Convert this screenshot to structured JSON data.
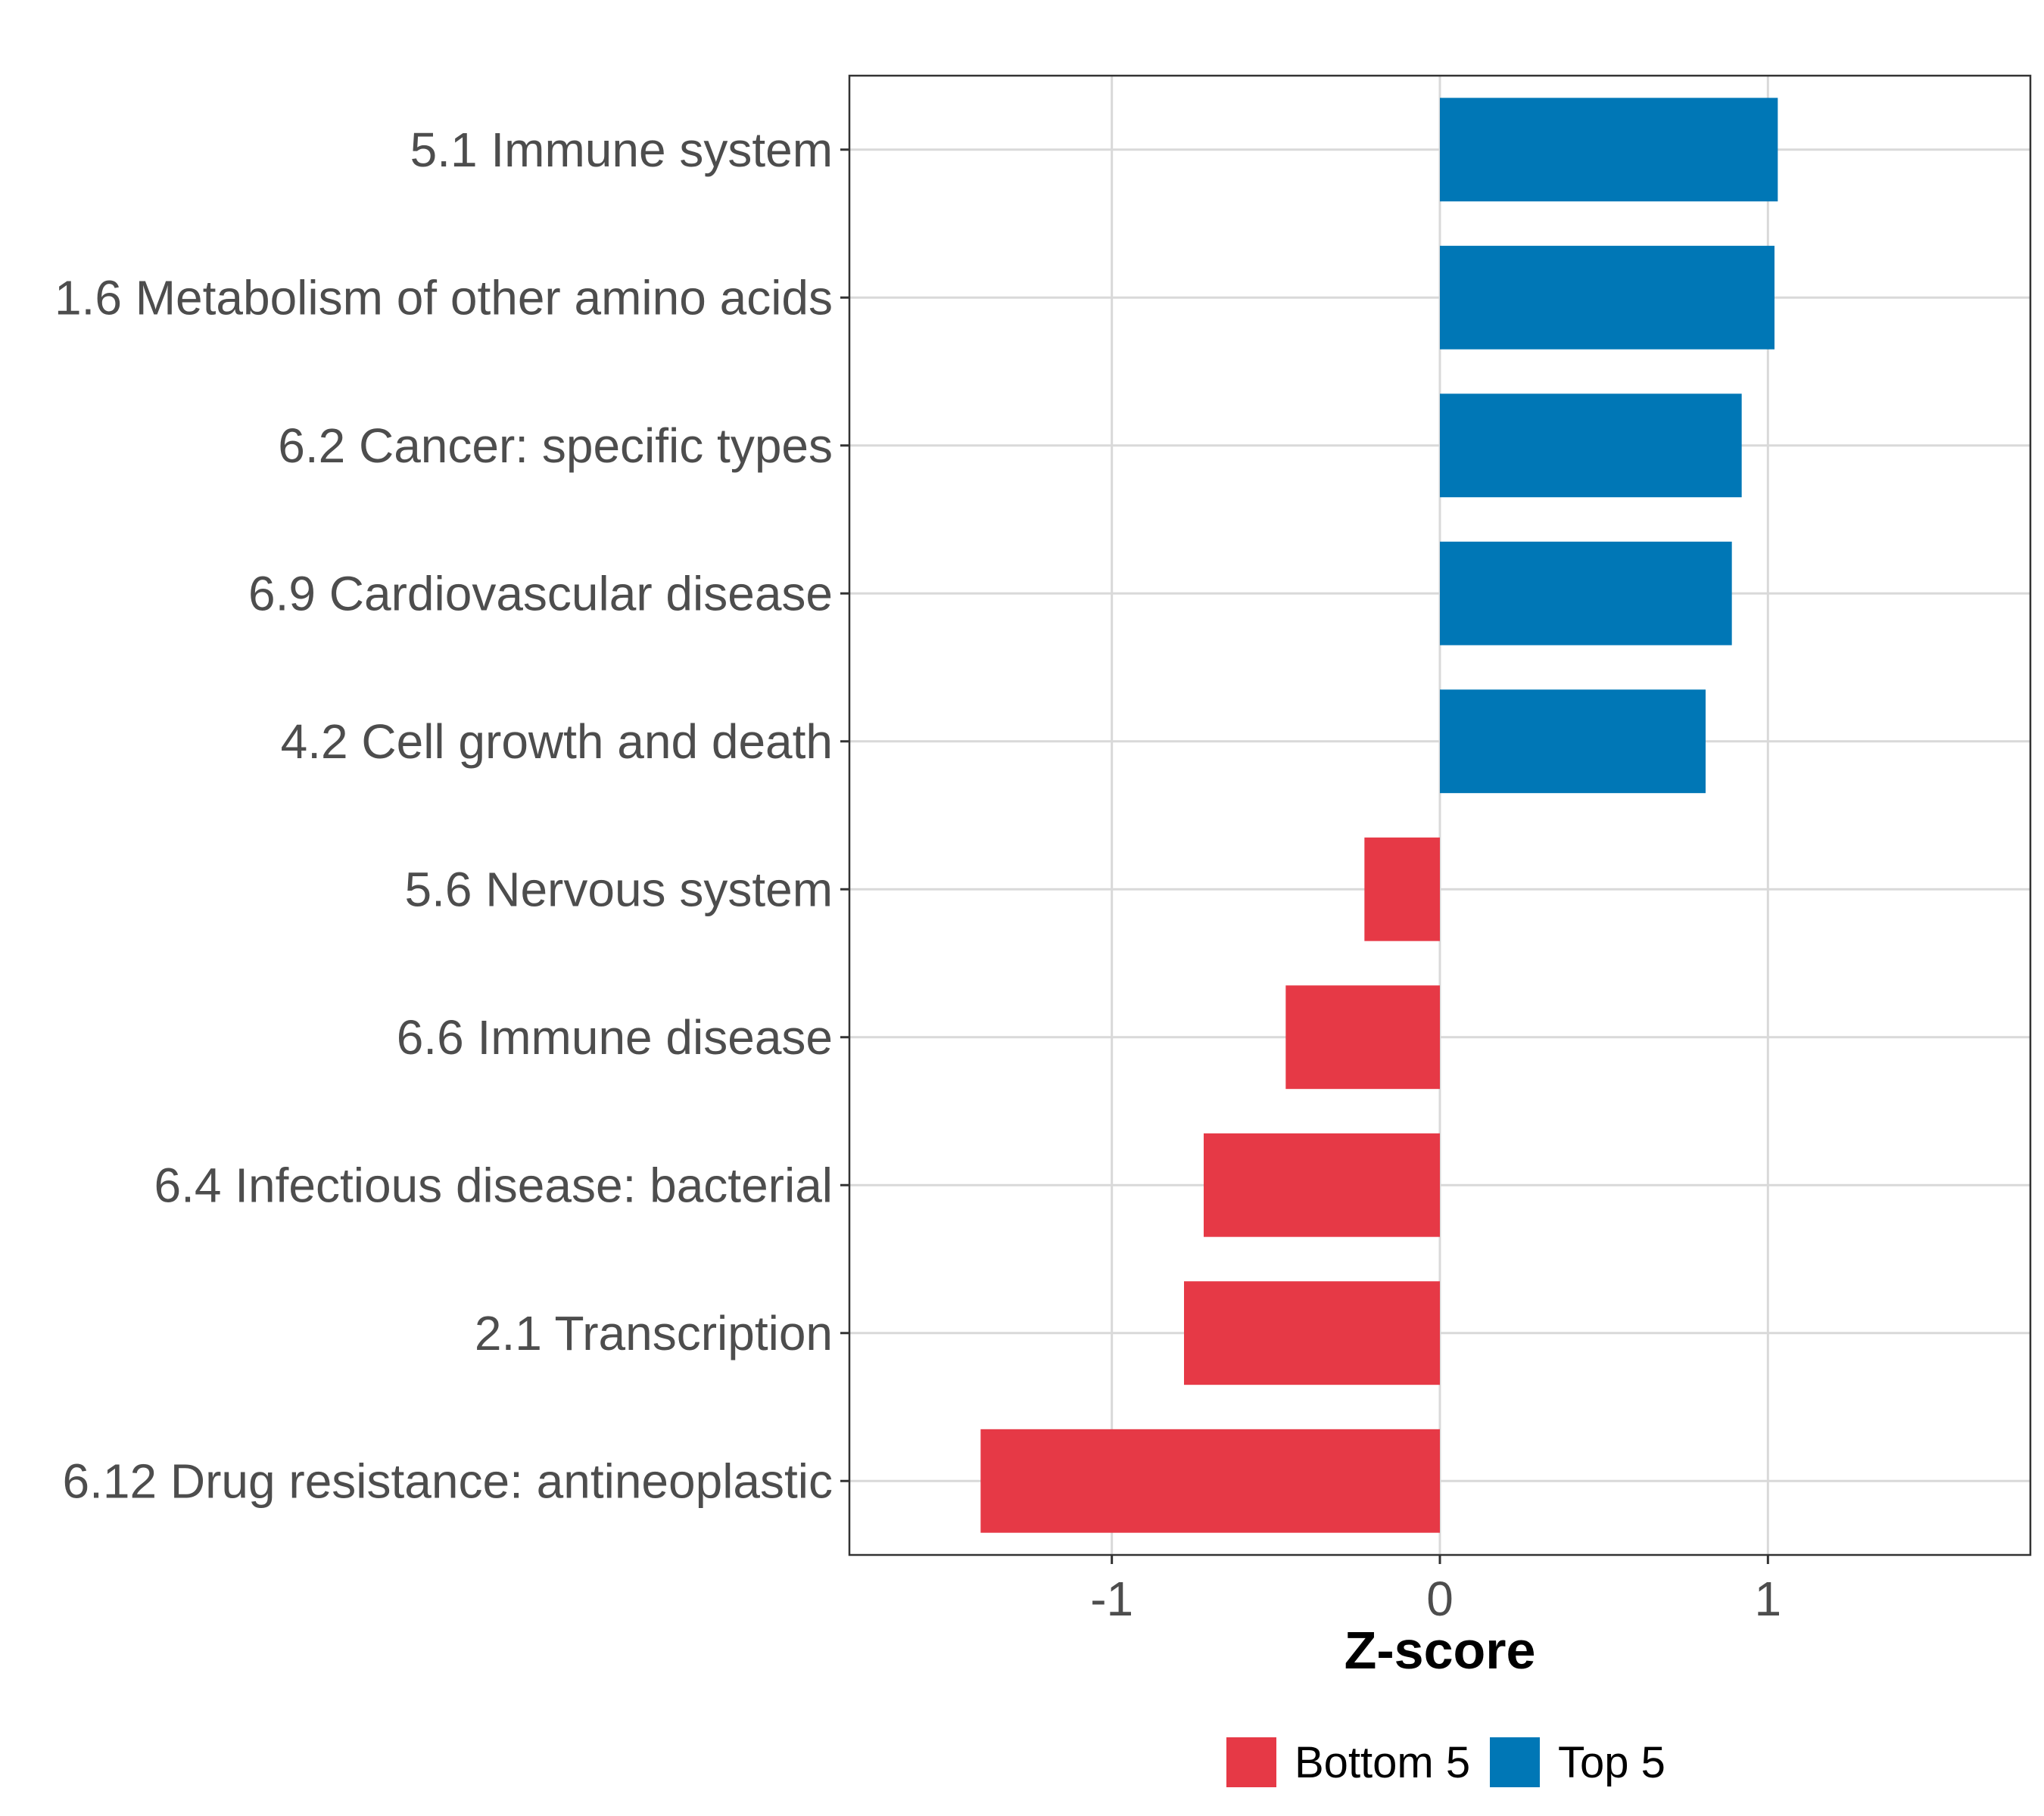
{
  "chart_data": {
    "type": "bar",
    "orientation": "horizontal",
    "title": "",
    "xlabel": "Z-score",
    "ylabel": "",
    "xlim": [
      -1.8,
      1.8
    ],
    "xticks": [
      -1,
      0,
      1
    ],
    "xtick_labels": [
      "-1",
      "0",
      "1"
    ],
    "grid": true,
    "categories": [
      "5.1 Immune system",
      "1.6 Metabolism of other amino acids",
      "6.2 Cancer: specific types",
      "6.9 Cardiovascular disease",
      "4.2 Cell growth and death",
      "5.6 Nervous system",
      "6.6 Immune disease",
      "6.4 Infectious disease: bacterial",
      "2.1 Transcription",
      "6.12 Drug resistance: antineoplastic"
    ],
    "values": [
      1.03,
      1.02,
      0.92,
      0.89,
      0.81,
      -0.23,
      -0.47,
      -0.72,
      -0.78,
      -1.4
    ],
    "groups": [
      "Top 5",
      "Top 5",
      "Top 5",
      "Top 5",
      "Top 5",
      "Bottom 5",
      "Bottom 5",
      "Bottom 5",
      "Bottom 5",
      "Bottom 5"
    ],
    "legend": {
      "position": "bottom",
      "entries": [
        {
          "name": "Bottom 5",
          "color": "#E63946"
        },
        {
          "name": "Top 5",
          "color": "#0077B6"
        }
      ]
    },
    "colors": {
      "Top 5": "#0077B6",
      "Bottom 5": "#E63946"
    }
  }
}
